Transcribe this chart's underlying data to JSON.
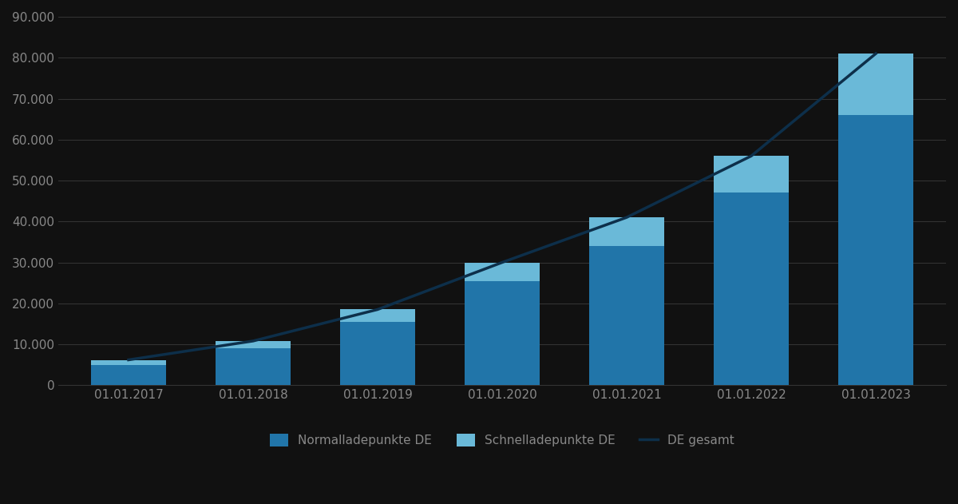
{
  "categories": [
    "01.01.2017",
    "01.01.2018",
    "01.01.2019",
    "01.01.2020",
    "01.01.2021",
    "01.01.2022",
    "01.01.2023"
  ],
  "normalladepunkte": [
    5000,
    9000,
    15500,
    25500,
    34000,
    47000,
    66000
  ],
  "schnellladepunkte": [
    1200,
    1800,
    3000,
    4500,
    7000,
    9000,
    15000
  ],
  "de_gesamt": [
    6200,
    10800,
    18500,
    30000,
    41000,
    56000,
    81000
  ],
  "color_normal": "#2175a9",
  "color_schnell": "#6ab9d8",
  "color_line": "#0d2f4a",
  "background_color": "#111111",
  "text_color": "#888888",
  "grid_color": "#333333",
  "ylim": [
    0,
    90000
  ],
  "yticks": [
    0,
    10000,
    20000,
    30000,
    40000,
    50000,
    60000,
    70000,
    80000,
    90000
  ],
  "legend_normal": "Normalladepunkte DE",
  "legend_schnell": "Schnelladepunkte DE",
  "legend_line": "DE gesamt",
  "bar_width": 0.6
}
